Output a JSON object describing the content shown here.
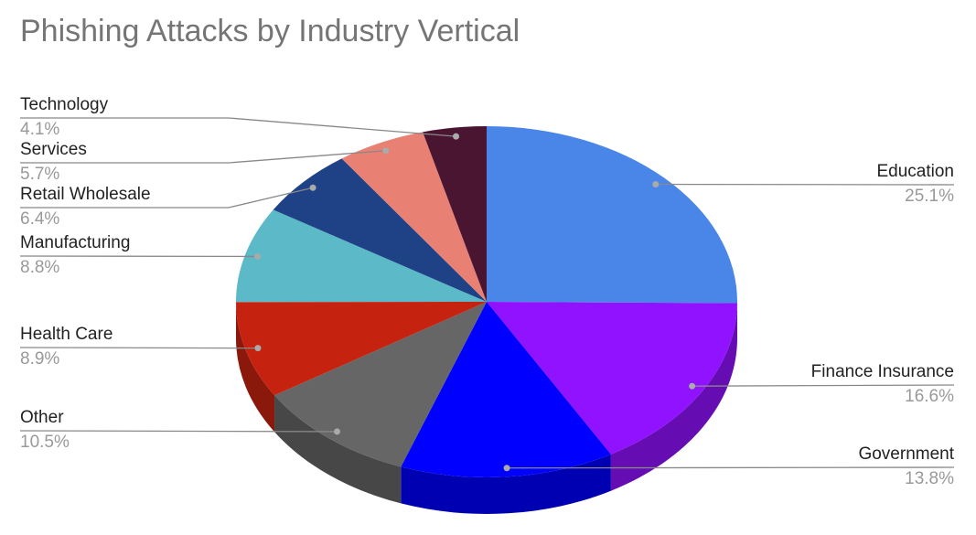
{
  "chart_data": {
    "type": "pie",
    "title": "Phishing Attacks by Industry Vertical",
    "categories": [
      "Education",
      "Finance Insurance",
      "Government",
      "Other",
      "Health Care",
      "Manufacturing",
      "Retail Wholesale",
      "Services",
      "Technology"
    ],
    "values": [
      25.1,
      16.6,
      13.8,
      10.5,
      8.9,
      8.8,
      6.4,
      5.7,
      4.1
    ],
    "value_labels": [
      "25.1%",
      "16.6%",
      "13.8%",
      "10.5%",
      "8.9%",
      "8.8%",
      "6.4%",
      "5.7%",
      "4.1%"
    ],
    "colors": [
      "#4a86e8",
      "#9012fe",
      "#0000ff",
      "#666666",
      "#c5220f",
      "#5bb9c8",
      "#1f4286",
      "#e88074",
      "#4a1530"
    ]
  }
}
